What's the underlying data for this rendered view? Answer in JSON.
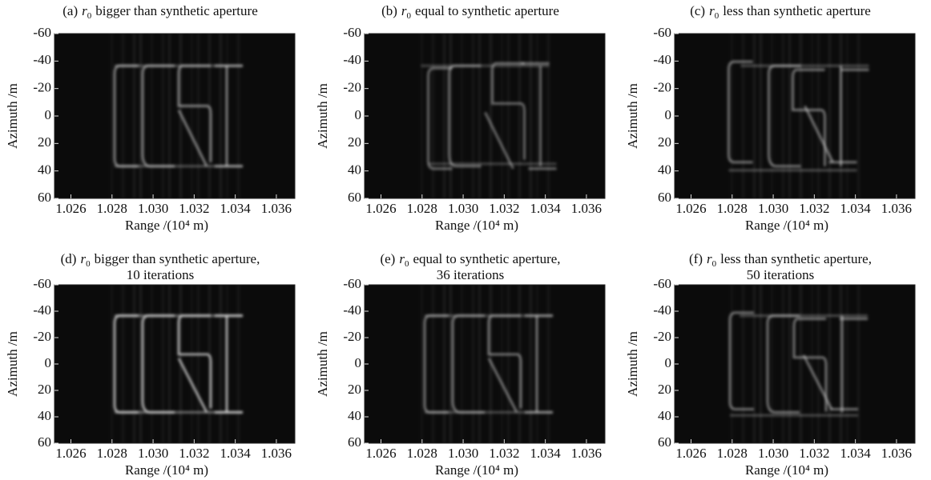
{
  "chart_data": [
    {
      "type": "image",
      "title": {
        "label": "(a)",
        "symbol": "r",
        "subscript": "0",
        "text": "bigger than synthetic aperture"
      },
      "xlabel": "Range /(10⁴ m)",
      "ylabel": "Azimuth /m",
      "xlim": [
        1.0252,
        1.0369
      ],
      "xticks": [
        1.026,
        1.028,
        {
          "value": 1.03,
          "label": "1.030"
        },
        1.032,
        1.034,
        1.036
      ],
      "ylim": [
        -60,
        60
      ],
      "y_inverted": true,
      "yticks": [
        -60,
        -40,
        -20,
        0,
        20,
        40,
        60
      ]
    },
    {
      "type": "image",
      "title": {
        "label": "(b)",
        "symbol": "r",
        "subscript": "0",
        "text": "equal to synthetic aperture"
      },
      "xlabel": "Range /(10⁴ m)",
      "ylabel": "Azimuth /m",
      "xlim": [
        1.0252,
        1.0369
      ],
      "xticks": [
        1.026,
        1.028,
        {
          "value": 1.03,
          "label": "1.030"
        },
        1.032,
        1.034,
        1.036
      ],
      "ylim": [
        -60,
        60
      ],
      "y_inverted": true,
      "yticks": [
        -60,
        -40,
        -20,
        0,
        20,
        40,
        60
      ]
    },
    {
      "type": "image",
      "title": {
        "label": "(c)",
        "symbol": "r",
        "subscript": "0",
        "text": "less than synthetic aperture"
      },
      "xlabel": "Range /(10⁴ m)",
      "ylabel": "Azimuth /m",
      "xlim": [
        1.0252,
        1.0369
      ],
      "xticks": [
        1.026,
        1.028,
        {
          "value": 1.03,
          "label": "1.030"
        },
        1.032,
        1.034,
        1.036
      ],
      "ylim": [
        -60,
        60
      ],
      "y_inverted": true,
      "yticks": [
        -60,
        -40,
        -20,
        0,
        20,
        40,
        60
      ]
    },
    {
      "type": "image",
      "title": {
        "label": "(d)",
        "symbol": "r",
        "subscript": "0",
        "text": "bigger than synthetic aperture,"
      },
      "subtitle": "10 iterations",
      "xlabel": "Range /(10⁴ m)",
      "ylabel": "Azimuth /m",
      "xlim": [
        1.0252,
        1.0369
      ],
      "xticks": [
        1.026,
        1.028,
        {
          "value": 1.03,
          "label": "1.030"
        },
        1.032,
        1.034,
        1.036
      ],
      "ylim": [
        -60,
        60
      ],
      "y_inverted": true,
      "yticks": [
        -60,
        -40,
        -20,
        0,
        20,
        40,
        60
      ]
    },
    {
      "type": "image",
      "title": {
        "label": "(e)",
        "symbol": "r",
        "subscript": "0",
        "text": "equal to synthetic aperture,"
      },
      "subtitle": "36 iterations",
      "xlabel": "Range /(10⁴ m)",
      "ylabel": "Azimuth /m",
      "xlim": [
        1.0252,
        1.0369
      ],
      "xticks": [
        1.026,
        1.028,
        {
          "value": 1.03,
          "label": "1.030"
        },
        1.032,
        1.034,
        1.036
      ],
      "ylim": [
        -60,
        60
      ],
      "y_inverted": true,
      "yticks": [
        -60,
        -40,
        -20,
        0,
        20,
        40,
        60
      ]
    },
    {
      "type": "image",
      "title": {
        "label": "(f)",
        "symbol": "r",
        "subscript": "0",
        "text": "less than synthetic aperture,"
      },
      "subtitle": "50 iterations",
      "xlabel": "Range /(10⁴ m)",
      "ylabel": "Azimuth /m",
      "xlim": [
        1.0252,
        1.0369
      ],
      "xticks": [
        1.026,
        1.028,
        {
          "value": 1.03,
          "label": "1.030"
        },
        1.032,
        1.034,
        1.036
      ],
      "ylim": [
        -60,
        60
      ],
      "y_inverted": true,
      "yticks": [
        -60,
        -40,
        -20,
        0,
        20,
        40,
        60
      ]
    }
  ]
}
